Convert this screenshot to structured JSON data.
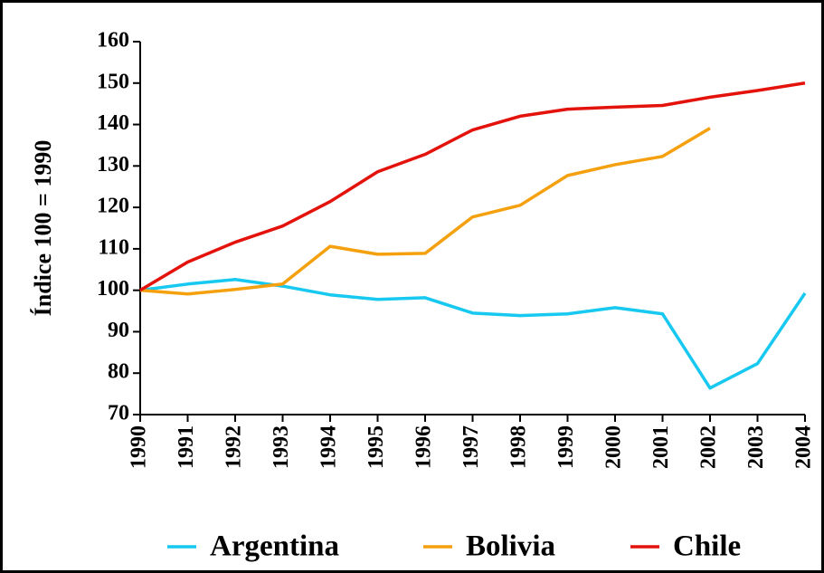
{
  "chart_data": {
    "type": "line",
    "ylabel": "Índice 100 = 1990",
    "x": [
      1990,
      1991,
      1992,
      1993,
      1994,
      1995,
      1996,
      1997,
      1998,
      1999,
      2000,
      2001,
      2002,
      2003,
      2004
    ],
    "series": [
      {
        "name": "Argentina",
        "color": "#17c8f0",
        "values": [
          100,
          101.5,
          102.6,
          101,
          98.9,
          97.8,
          98.2,
          94.5,
          93.9,
          94.3,
          95.8,
          94.3,
          76.4,
          82.3,
          99.3
        ]
      },
      {
        "name": "Bolivia",
        "color": "#f5a10f",
        "values": [
          100,
          99.1,
          100.2,
          101.5,
          110.6,
          108.7,
          108.9,
          117.7,
          120.5,
          127.7,
          130.3,
          132.3,
          139.1,
          null,
          null
        ]
      },
      {
        "name": "Chile",
        "color": "#e3120b",
        "values": [
          100,
          106.8,
          111.6,
          115.5,
          121.4,
          128.6,
          132.8,
          138.7,
          142,
          143.7,
          144.2,
          144.6,
          146.6,
          148.2,
          150
        ]
      }
    ],
    "xlim": [
      1990,
      2004
    ],
    "xticks": [
      1990,
      1991,
      1992,
      1993,
      1994,
      1995,
      1996,
      1997,
      1998,
      1999,
      2000,
      2001,
      2002,
      2003,
      2004
    ],
    "ylim": [
      70,
      160
    ],
    "yticks": [
      70,
      80,
      90,
      100,
      110,
      120,
      130,
      140,
      150,
      160
    ],
    "legend": "bottom"
  }
}
